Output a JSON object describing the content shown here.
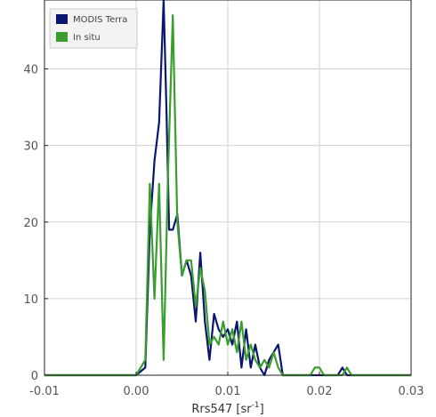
{
  "chart_data": {
    "type": "line",
    "xlabel": "Rrs547 [sr",
    "xlabel_superscript": "-1",
    "xlabel_suffix": "]",
    "xlim": [
      -0.01,
      0.03
    ],
    "ylim": [
      0,
      49
    ],
    "x_ticks": [
      -0.01,
      0.0,
      0.01,
      0.02,
      0.03
    ],
    "x_tick_labels": [
      "-0.01",
      "0.00",
      "0.01",
      "0.02",
      "0.03"
    ],
    "y_ticks": [
      0,
      10,
      20,
      30,
      40
    ],
    "y_tick_labels": [
      "0",
      "10",
      "20",
      "30",
      "40"
    ],
    "grid": true,
    "legend_position": "top-left",
    "series": [
      {
        "name": "MODIS Terra",
        "color": "#0a1670",
        "x": [
          -0.01,
          0.0,
          0.001,
          0.0015,
          0.002,
          0.0025,
          0.003,
          0.0033,
          0.0036,
          0.004,
          0.0045,
          0.005,
          0.0055,
          0.006,
          0.0065,
          0.007,
          0.0075,
          0.008,
          0.0085,
          0.009,
          0.0095,
          0.01,
          0.0105,
          0.011,
          0.0115,
          0.012,
          0.0125,
          0.013,
          0.0135,
          0.014,
          0.0145,
          0.015,
          0.0155,
          0.016,
          0.0165,
          0.017,
          0.0175,
          0.022,
          0.0225,
          0.023,
          0.03
        ],
        "y": [
          0,
          0,
          1,
          19,
          28,
          33,
          49,
          35,
          19,
          19,
          21,
          13,
          15,
          13,
          7,
          16,
          7,
          2,
          8,
          6,
          5,
          6,
          4,
          7,
          1,
          6,
          1,
          4,
          1,
          0,
          2,
          3,
          4,
          0,
          0,
          0,
          0,
          0,
          1,
          0,
          0
        ]
      },
      {
        "name": "In situ",
        "color": "#3a9e2e",
        "x": [
          -0.01,
          0.0,
          0.001,
          0.0015,
          0.002,
          0.0025,
          0.003,
          0.0035,
          0.004,
          0.0045,
          0.005,
          0.0055,
          0.006,
          0.0065,
          0.007,
          0.0075,
          0.008,
          0.0085,
          0.009,
          0.0095,
          0.01,
          0.0105,
          0.011,
          0.0115,
          0.012,
          0.0125,
          0.013,
          0.0135,
          0.014,
          0.0145,
          0.015,
          0.0155,
          0.016,
          0.0165,
          0.019,
          0.0195,
          0.02,
          0.0205,
          0.0225,
          0.023,
          0.0235,
          0.03
        ],
        "y": [
          0,
          0,
          2,
          25,
          10,
          25,
          2,
          27,
          47,
          20,
          13,
          15,
          15,
          9,
          14,
          11,
          4,
          5,
          4,
          7,
          4,
          6,
          3,
          7,
          2,
          4,
          2,
          1,
          2,
          1,
          3,
          1,
          0,
          0,
          0,
          1,
          1,
          0,
          0,
          1,
          0,
          0
        ]
      }
    ]
  }
}
